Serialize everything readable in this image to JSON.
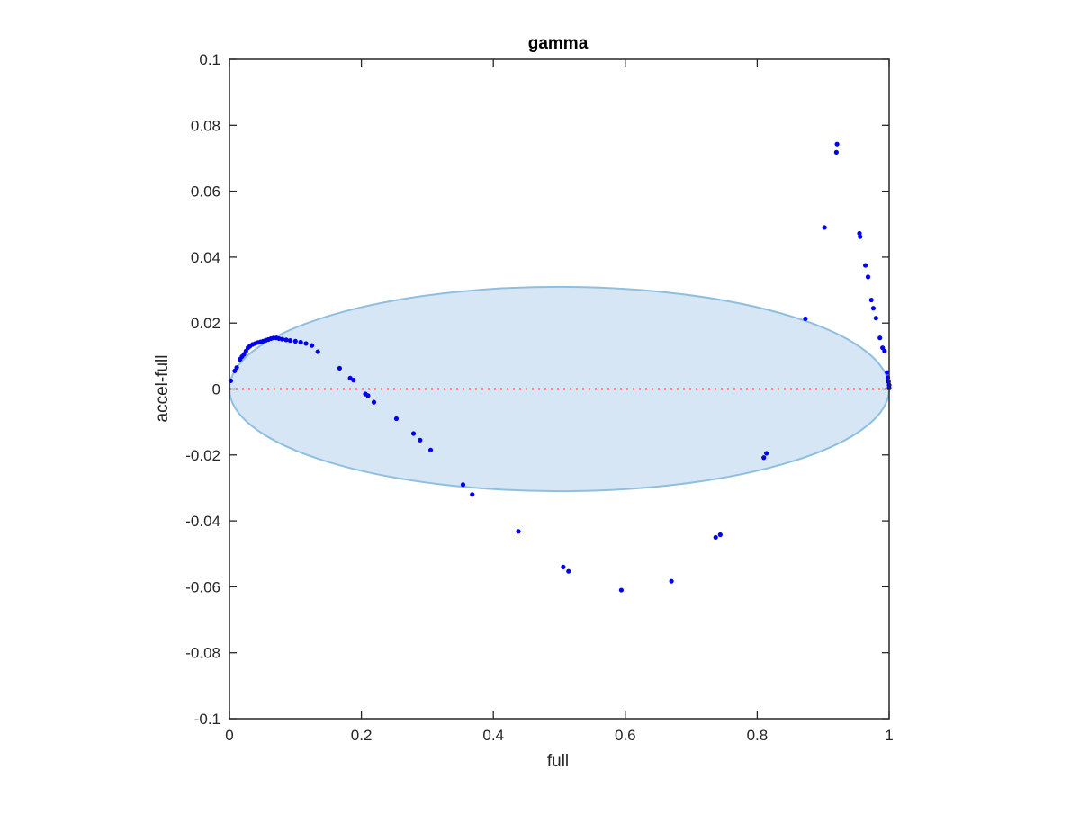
{
  "chart_data": {
    "type": "scatter",
    "title": "gamma",
    "xlabel": "full",
    "ylabel": "accel-full",
    "xlim": [
      0,
      1
    ],
    "ylim": [
      -0.1,
      0.1
    ],
    "xticks": [
      "0",
      "0.2",
      "0.4",
      "0.6",
      "0.8",
      "1"
    ],
    "xtick_values": [
      0,
      0.2,
      0.4,
      0.6,
      0.8,
      1
    ],
    "yticks": [
      "-0.1",
      "-0.08",
      "-0.06",
      "-0.04",
      "-0.02",
      "0",
      "0.02",
      "0.04",
      "0.06",
      "0.08",
      "0.1"
    ],
    "ytick_values": [
      -0.1,
      -0.08,
      -0.06,
      -0.04,
      -0.02,
      0,
      0.02,
      0.04,
      0.06,
      0.08,
      0.1
    ],
    "grid": false,
    "reference_line": {
      "y": 0,
      "color": "#ff3b3b",
      "style": "dotted"
    },
    "ellipse": {
      "center": [
        0.5,
        0
      ],
      "radius_x": 0.5,
      "radius_y": 0.031,
      "fill": "#d6e6f4",
      "stroke": "#8fbfe0"
    },
    "marker_color": "#0000ee",
    "points": [
      [
        0.002,
        0.0025
      ],
      [
        0.008,
        0.0055
      ],
      [
        0.011,
        0.0065
      ],
      [
        0.016,
        0.009
      ],
      [
        0.019,
        0.0098
      ],
      [
        0.022,
        0.0105
      ],
      [
        0.025,
        0.0115
      ],
      [
        0.028,
        0.0125
      ],
      [
        0.031,
        0.013
      ],
      [
        0.035,
        0.0135
      ],
      [
        0.039,
        0.0138
      ],
      [
        0.043,
        0.0141
      ],
      [
        0.047,
        0.0143
      ],
      [
        0.051,
        0.0145
      ],
      [
        0.055,
        0.0148
      ],
      [
        0.059,
        0.015
      ],
      [
        0.063,
        0.0153
      ],
      [
        0.067,
        0.0155
      ],
      [
        0.071,
        0.0155
      ],
      [
        0.075,
        0.0153
      ],
      [
        0.08,
        0.0151
      ],
      [
        0.086,
        0.0149
      ],
      [
        0.092,
        0.0147
      ],
      [
        0.1,
        0.0145
      ],
      [
        0.108,
        0.0142
      ],
      [
        0.116,
        0.0138
      ],
      [
        0.125,
        0.0132
      ],
      [
        0.134,
        0.0113
      ],
      [
        0.167,
        0.0063
      ],
      [
        0.183,
        0.0033
      ],
      [
        0.188,
        0.0027
      ],
      [
        0.206,
        -0.0015
      ],
      [
        0.21,
        -0.002
      ],
      [
        0.219,
        -0.004
      ],
      [
        0.253,
        -0.009
      ],
      [
        0.279,
        -0.0135
      ],
      [
        0.289,
        -0.0155
      ],
      [
        0.305,
        -0.0185
      ],
      [
        0.354,
        -0.029
      ],
      [
        0.368,
        -0.032
      ],
      [
        0.438,
        -0.0432
      ],
      [
        0.506,
        -0.054
      ],
      [
        0.514,
        -0.0553
      ],
      [
        0.594,
        -0.061
      ],
      [
        0.67,
        -0.0583
      ],
      [
        0.737,
        -0.045
      ],
      [
        0.744,
        -0.0442
      ],
      [
        0.81,
        -0.0208
      ],
      [
        0.814,
        -0.0195
      ],
      [
        0.873,
        0.0213
      ],
      [
        0.902,
        0.049
      ],
      [
        0.92,
        0.0718
      ],
      [
        0.921,
        0.0743
      ],
      [
        0.955,
        0.0472
      ],
      [
        0.956,
        0.0462
      ],
      [
        0.964,
        0.0375
      ],
      [
        0.968,
        0.034
      ],
      [
        0.973,
        0.027
      ],
      [
        0.976,
        0.0245
      ],
      [
        0.98,
        0.0215
      ],
      [
        0.986,
        0.0155
      ],
      [
        0.99,
        0.0125
      ],
      [
        0.993,
        0.0115
      ],
      [
        0.997,
        0.005
      ],
      [
        0.998,
        0.0035
      ],
      [
        0.999,
        0.0022
      ],
      [
        1.0,
        0.0012
      ],
      [
        1.0,
        0.0003
      ]
    ]
  }
}
